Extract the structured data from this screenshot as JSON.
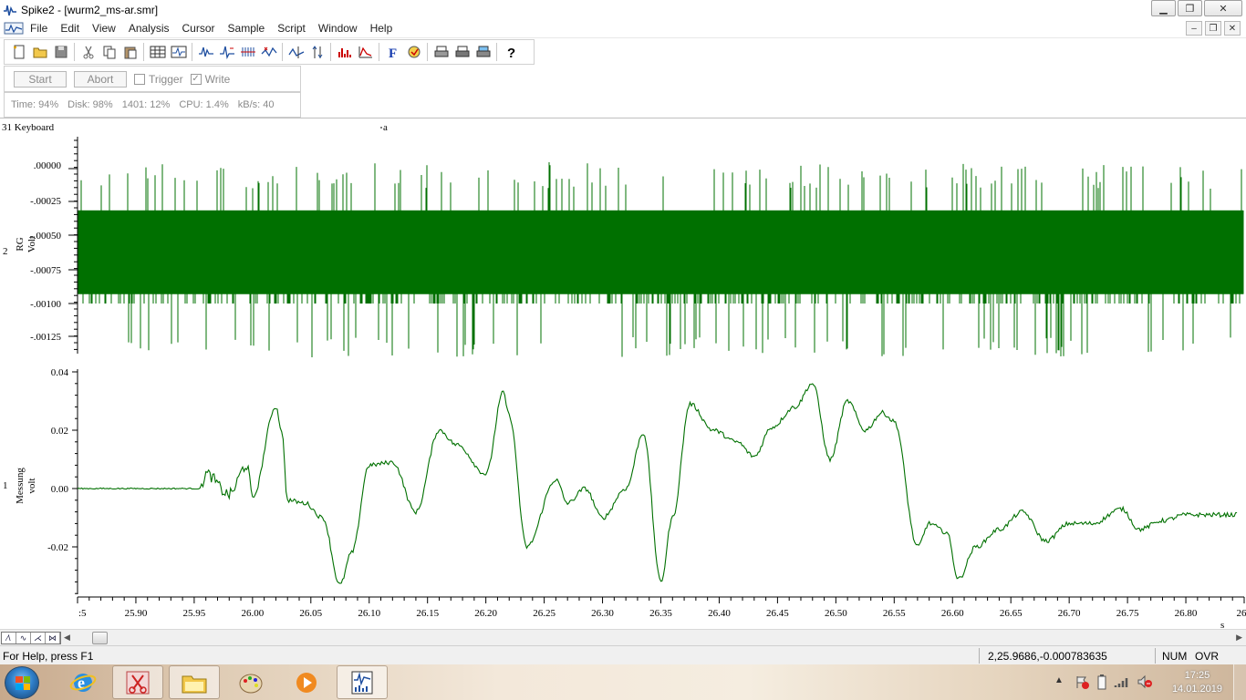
{
  "window": {
    "title": "Spike2 - [wurm2_ms-ar.smr]",
    "minimize": "▁",
    "restore": "❐",
    "close": "✕"
  },
  "menu": [
    "File",
    "Edit",
    "View",
    "Analysis",
    "Cursor",
    "Sample",
    "Script",
    "Window",
    "Help"
  ],
  "sampling": {
    "start_label": "Start",
    "abort_label": "Abort",
    "trigger_label": "Trigger",
    "write_label": "Write",
    "trigger_checked": false,
    "write_checked": true
  },
  "info": {
    "time": "Time: 94%",
    "disk": "Disk:  98%",
    "buffer": "1401: 12%",
    "cpu": "CPU:  1.4%",
    "kbs": "kB/s:  40"
  },
  "channels": {
    "keyboard_label": "31 Keyboard",
    "marker_label": "a",
    "ch2_number": "2",
    "ch2_name": "RG",
    "ch2_unit": "Volt",
    "ch1_number": "1",
    "ch1_name": "Messung",
    "ch1_unit": "volt"
  },
  "chart_data": [
    {
      "type": "line",
      "title": "",
      "channel": "2",
      "series": [
        {
          "name": "RG"
        }
      ],
      "ylabel": "RG Volt",
      "yticks": [
        ".00000",
        "-.00025",
        "-.00050",
        "-.00075",
        "-.00100",
        "-.00125"
      ],
      "ylim": [
        -0.00135,
        5e-05
      ],
      "description_of_values": "dense noise band: core -0.00031 to -0.00093, spikes up to about +0.00005 and down to about -0.00140",
      "color": "#007000"
    },
    {
      "type": "line",
      "title": "",
      "channel": "1",
      "series": [
        {
          "name": "Messung"
        }
      ],
      "ylabel": "Messung volt",
      "yticks": [
        "0.04",
        "0.02",
        "0.00",
        "-0.02"
      ],
      "ylim": [
        -0.033,
        0.04
      ],
      "xlabel": "s",
      "xticks": [
        ":5",
        "25.90",
        "25.95",
        "26.00",
        "26.05",
        "26.10",
        "26.15",
        "26.20",
        "26.25",
        "26.30",
        "26.35",
        "26.40",
        "26.45",
        "26.50",
        "26.55",
        "26.60",
        "26.65",
        "26.70",
        "26.75",
        "26.80",
        "26"
      ],
      "xlim": [
        25.85,
        26.85
      ],
      "x": [
        25.85,
        25.9,
        25.955,
        25.96,
        25.98,
        25.995,
        26.0,
        26.02,
        26.025,
        26.03,
        26.045,
        26.06,
        26.075,
        26.085,
        26.1,
        26.12,
        26.14,
        26.16,
        26.175,
        26.2,
        26.215,
        26.22,
        26.235,
        26.26,
        26.27,
        26.285,
        26.3,
        26.32,
        26.335,
        26.35,
        26.36,
        26.375,
        26.395,
        26.415,
        26.43,
        26.445,
        26.465,
        26.48,
        26.495,
        26.51,
        26.525,
        26.54,
        26.55,
        26.57,
        26.58,
        26.595,
        26.605,
        26.62,
        26.64,
        26.66,
        26.68,
        26.7,
        26.72,
        26.745,
        26.76,
        26.78,
        26.8,
        26.845
      ],
      "values": [
        0.0,
        0.0,
        0.0,
        0.005,
        -0.002,
        0.008,
        -0.003,
        0.028,
        0.02,
        -0.004,
        -0.005,
        -0.01,
        -0.033,
        -0.022,
        0.008,
        0.009,
        -0.008,
        0.02,
        0.015,
        0.005,
        0.033,
        0.025,
        -0.02,
        0.003,
        -0.005,
        0.0,
        -0.01,
        0.0,
        0.019,
        -0.032,
        -0.01,
        0.029,
        0.02,
        0.016,
        0.011,
        0.021,
        0.028,
        0.036,
        0.01,
        0.03,
        0.02,
        0.026,
        0.023,
        -0.02,
        -0.012,
        -0.015,
        -0.031,
        -0.02,
        -0.014,
        -0.008,
        -0.018,
        -0.012,
        -0.012,
        -0.007,
        -0.014,
        -0.011,
        -0.009,
        -0.009
      ],
      "color": "#007000"
    }
  ],
  "status": {
    "help": "For Help, press F1",
    "coords": "2,25.9686,-0.000783635",
    "num": "NUM",
    "ovr": "OVR"
  },
  "taskbar": {
    "time": "17:25",
    "date": "14.01.2019"
  }
}
